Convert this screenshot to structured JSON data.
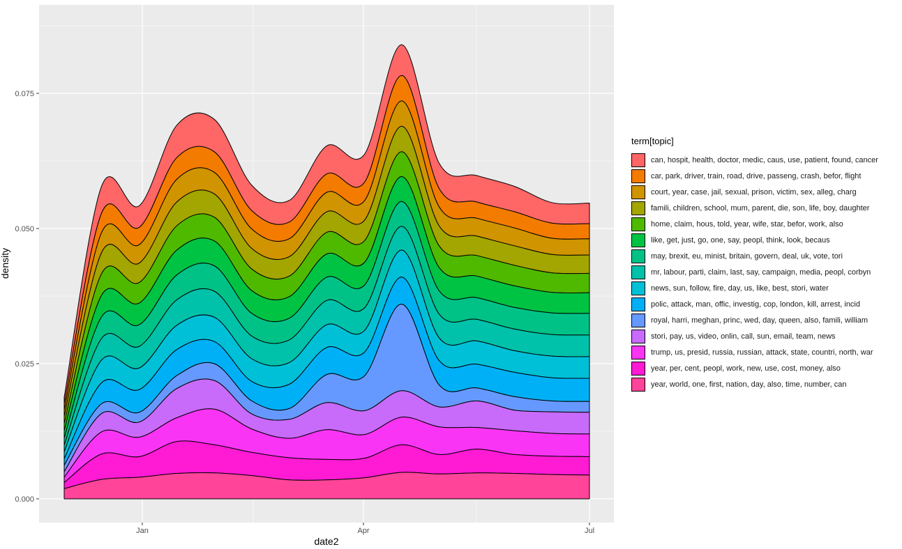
{
  "chart_data": {
    "type": "area",
    "stacked": true,
    "xlabel": "date2",
    "ylabel": "density",
    "x_ticks": [
      "Jan",
      "Apr",
      "Jul"
    ],
    "y_ticks": [
      "0.000",
      "0.025",
      "0.050",
      "0.075"
    ],
    "ylim": [
      0,
      0.088
    ],
    "grid": true,
    "legend_title": "term[topic]",
    "legend_position": "right",
    "x": [
      "Dec 22",
      "Jan 5",
      "Jan 19",
      "Feb 2",
      "Feb 16",
      "Mar 2",
      "Mar 16",
      "Mar 30",
      "Apr 13",
      "Apr 27",
      "May 11",
      "May 25",
      "Jun 8",
      "Jun 22",
      "Jul 1"
    ],
    "series": [
      {
        "name": "year, world, one, first, nation, day, also, time, number, can",
        "color": "#ff4499",
        "values": [
          0.0019,
          0.0036,
          0.004,
          0.0047,
          0.0048,
          0.0043,
          0.0035,
          0.0035,
          0.0039,
          0.0049,
          0.0046,
          0.0048,
          0.0047,
          0.0045,
          0.0044
        ]
      },
      {
        "name": "year, per, cent, peopl, work, new, use, cost, money, also",
        "color": "#ff1ad4",
        "values": [
          0.0011,
          0.0047,
          0.0038,
          0.0059,
          0.0052,
          0.0043,
          0.0041,
          0.0038,
          0.0036,
          0.0051,
          0.0036,
          0.0044,
          0.0035,
          0.0034,
          0.0034
        ]
      },
      {
        "name": "trump, us, presid, russia, russian, attack, state, countri, north, war",
        "color": "#fa34f5",
        "values": [
          0.001,
          0.0041,
          0.0036,
          0.0044,
          0.0066,
          0.0043,
          0.0036,
          0.0055,
          0.0044,
          0.0051,
          0.0051,
          0.004,
          0.0044,
          0.0042,
          0.0042
        ]
      },
      {
        "name": "stori, pay, us, video, onlin, call, sun, email, team, news",
        "color": "#c86afa",
        "values": [
          0.001,
          0.0034,
          0.0028,
          0.0054,
          0.0053,
          0.0028,
          0.0035,
          0.005,
          0.0044,
          0.0049,
          0.0037,
          0.0049,
          0.0038,
          0.004,
          0.004
        ]
      },
      {
        "name": "royal, harri, meghan, princ, wed, day, queen, also, famili, william",
        "color": "#6699ff",
        "values": [
          0.0012,
          0.0018,
          0.0018,
          0.0024,
          0.0031,
          0.0024,
          0.002,
          0.0052,
          0.0064,
          0.016,
          0.004,
          0.0024,
          0.0025,
          0.002,
          0.002
        ]
      },
      {
        "name": "polic, attack, man, offic, investig, cop, london, kill, arrest, incid",
        "color": "#00b0f6",
        "values": [
          0.0012,
          0.0039,
          0.0042,
          0.0048,
          0.0041,
          0.0036,
          0.0045,
          0.005,
          0.0044,
          0.005,
          0.0045,
          0.0044,
          0.0045,
          0.0043,
          0.0043
        ]
      },
      {
        "name": "news, sun, follow, fire, day, us, like, best, stori, water",
        "color": "#00c0d8",
        "values": [
          0.0013,
          0.0042,
          0.004,
          0.0045,
          0.0045,
          0.0042,
          0.004,
          0.0042,
          0.004,
          0.005,
          0.0042,
          0.0043,
          0.004,
          0.004,
          0.004
        ]
      },
      {
        "name": "mr, labour, parti, claim, last, say, campaign, media, peopl, corbyn",
        "color": "#00c1aa",
        "values": [
          0.0012,
          0.004,
          0.004,
          0.0047,
          0.0048,
          0.0042,
          0.0042,
          0.0045,
          0.0042,
          0.0044,
          0.0044,
          0.004,
          0.004,
          0.004,
          0.004
        ]
      },
      {
        "name": "may, brexit, eu, minist, britain, govern, deal, uk, vote, tori",
        "color": "#00c287",
        "values": [
          0.0013,
          0.004,
          0.004,
          0.0046,
          0.0047,
          0.0042,
          0.004,
          0.0043,
          0.0042,
          0.0046,
          0.0043,
          0.004,
          0.004,
          0.004,
          0.004
        ]
      },
      {
        "name": "like, get, just, go, one, say, peopl, think, look, becaus",
        "color": "#00c343",
        "values": [
          0.0014,
          0.004,
          0.004,
          0.0046,
          0.0046,
          0.0042,
          0.004,
          0.0043,
          0.0042,
          0.0046,
          0.0043,
          0.004,
          0.004,
          0.0038,
          0.0038
        ]
      },
      {
        "name": "home, claim, hous, told, year, wife, star, befor, work, also",
        "color": "#4fb900",
        "values": [
          0.0013,
          0.004,
          0.0038,
          0.0045,
          0.0044,
          0.004,
          0.0038,
          0.004,
          0.004,
          0.0046,
          0.004,
          0.0038,
          0.0038,
          0.0036,
          0.0036
        ]
      },
      {
        "name": "famili, children, school, mum, parent, die, son, life, boy, daughter",
        "color": "#a3a500",
        "values": [
          0.0013,
          0.0039,
          0.0036,
          0.0044,
          0.0043,
          0.0038,
          0.0036,
          0.0038,
          0.0038,
          0.0047,
          0.0037,
          0.0036,
          0.0036,
          0.0034,
          0.0034
        ]
      },
      {
        "name": "court, year, case, jail, sexual, prison, victim, sex, alleg, charg",
        "color": "#d09400",
        "values": [
          0.0012,
          0.0037,
          0.0034,
          0.0042,
          0.004,
          0.0036,
          0.0033,
          0.0036,
          0.0036,
          0.0047,
          0.0035,
          0.0033,
          0.0033,
          0.003,
          0.003
        ]
      },
      {
        "name": "car, park, driver, train, road, drive, passeng, crash, befor, flight",
        "color": "#f37b00",
        "values": [
          0.0012,
          0.0036,
          0.0032,
          0.004,
          0.0038,
          0.0034,
          0.0031,
          0.0034,
          0.0034,
          0.0047,
          0.0034,
          0.003,
          0.003,
          0.0028,
          0.0028
        ]
      },
      {
        "name": "can, hospit, health, doctor, medic, caus, use, patient, found, cancer",
        "color": "#ff6666",
        "values": [
          0.0012,
          0.005,
          0.004,
          0.006,
          0.006,
          0.0047,
          0.004,
          0.0052,
          0.0052,
          0.0057,
          0.0047,
          0.0049,
          0.0047,
          0.0038,
          0.0038
        ]
      }
    ]
  }
}
